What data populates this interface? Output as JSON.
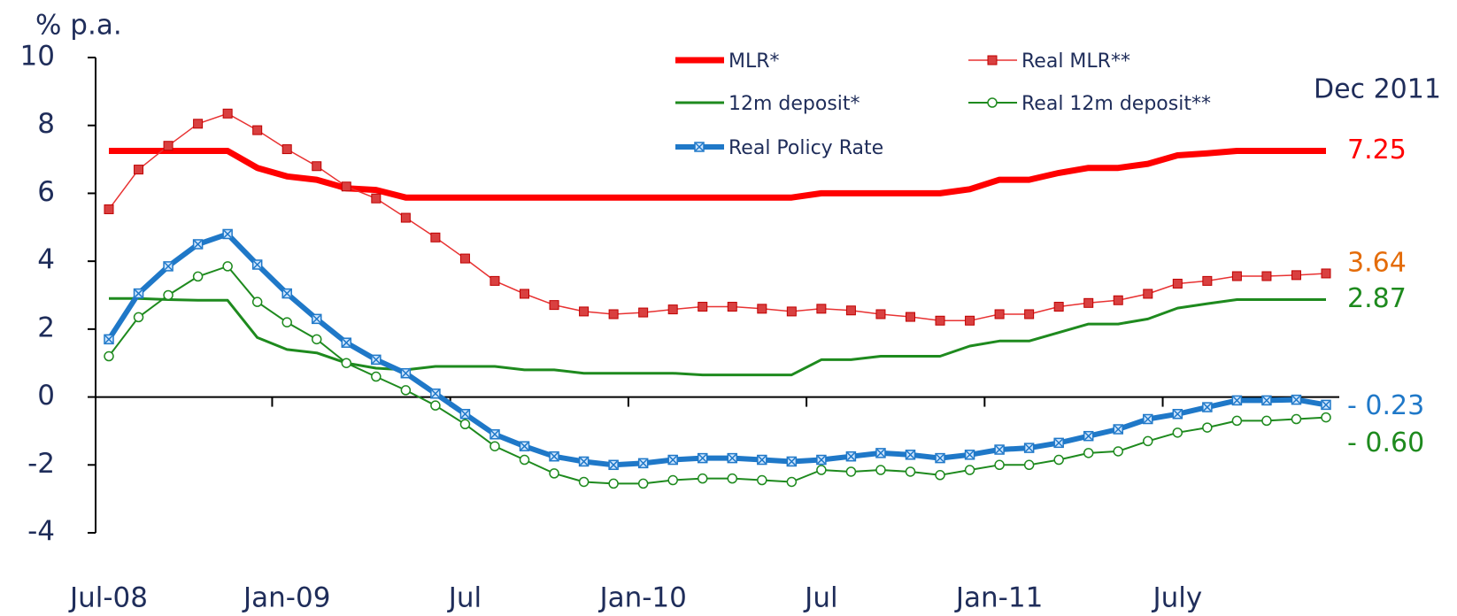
{
  "chart_data": {
    "type": "line",
    "y_label": "% p.a.",
    "annotation": "Dec 2011",
    "categories": [
      "Jul-08",
      null,
      null,
      null,
      null,
      null,
      "Jan-09",
      null,
      null,
      null,
      null,
      null,
      "Jul",
      null,
      null,
      null,
      null,
      null,
      "Jan-10",
      null,
      null,
      null,
      null,
      null,
      "Jul",
      null,
      null,
      null,
      null,
      null,
      "Jan-11",
      null,
      null,
      null,
      null,
      null,
      "July",
      null,
      null,
      null,
      null,
      null
    ],
    "ylim": [
      -4,
      10
    ],
    "yticks": [
      -4,
      -2,
      0,
      2,
      4,
      6,
      8,
      10
    ],
    "series": [
      {
        "name": "MLR*",
        "color": "#ff0000",
        "width": 7,
        "marker": "none",
        "values": [
          7.25,
          7.25,
          7.25,
          7.25,
          7.25,
          6.75,
          6.5,
          6.4,
          6.15,
          6.1,
          5.875,
          5.875,
          5.875,
          5.875,
          5.875,
          5.875,
          5.875,
          5.875,
          5.875,
          5.875,
          5.875,
          5.875,
          5.875,
          5.875,
          6.0,
          6.0,
          6.0,
          6.0,
          6.0,
          6.12,
          6.4,
          6.4,
          6.6,
          6.75,
          6.75,
          6.87,
          7.12,
          7.18,
          7.25,
          7.25,
          7.25,
          7.25
        ]
      },
      {
        "name": "Real MLR**",
        "color": "#e83232",
        "width": 1.5,
        "marker": "square",
        "label_color": "#e46c0a",
        "values": [
          5.53,
          6.7,
          7.4,
          8.05,
          8.35,
          7.86,
          7.3,
          6.8,
          6.2,
          5.85,
          5.28,
          4.7,
          4.08,
          3.42,
          3.04,
          2.71,
          2.52,
          2.44,
          2.49,
          2.58,
          2.66,
          2.66,
          2.6,
          2.52,
          2.6,
          2.55,
          2.44,
          2.36,
          2.25,
          2.25,
          2.44,
          2.44,
          2.66,
          2.77,
          2.85,
          3.04,
          3.34,
          3.42,
          3.56,
          3.56,
          3.59,
          3.64
        ]
      },
      {
        "name": "12m deposit*",
        "color": "#1e8a1e",
        "width": 3,
        "marker": "none",
        "values": [
          2.9,
          2.9,
          2.87,
          2.85,
          2.85,
          1.75,
          1.4,
          1.3,
          1.0,
          0.85,
          0.8,
          0.9,
          0.9,
          0.9,
          0.8,
          0.8,
          0.7,
          0.7,
          0.7,
          0.7,
          0.65,
          0.65,
          0.65,
          0.65,
          1.1,
          1.1,
          1.2,
          1.2,
          1.2,
          1.5,
          1.65,
          1.65,
          1.9,
          2.15,
          2.15,
          2.3,
          2.62,
          2.75,
          2.87,
          2.87,
          2.87,
          2.87
        ]
      },
      {
        "name": "Real 12m deposit**",
        "color": "#1e8a1e",
        "width": 2,
        "marker": "circle",
        "values": [
          1.2,
          2.35,
          3.0,
          3.55,
          3.85,
          2.8,
          2.2,
          1.7,
          1.0,
          0.6,
          0.2,
          -0.25,
          -0.8,
          -1.45,
          -1.85,
          -2.25,
          -2.5,
          -2.55,
          -2.55,
          -2.45,
          -2.4,
          -2.4,
          -2.45,
          -2.5,
          -2.15,
          -2.2,
          -2.15,
          -2.2,
          -2.3,
          -2.15,
          -2.0,
          -2.0,
          -1.85,
          -1.65,
          -1.6,
          -1.3,
          -1.05,
          -0.9,
          -0.7,
          -0.7,
          -0.65,
          -0.6
        ],
        "value_labels": [
          null,
          null,
          null,
          null,
          null,
          null,
          null,
          null,
          null,
          null,
          null,
          null,
          null,
          null,
          null,
          null,
          null,
          null,
          null,
          null,
          null,
          null,
          null,
          null,
          null,
          null,
          null,
          null,
          null,
          null,
          null,
          null,
          null,
          null,
          null,
          null,
          null,
          null,
          null,
          null,
          null,
          "- 0.60"
        ]
      },
      {
        "name": "Real Policy Rate",
        "color": "#1f78c8",
        "width": 6,
        "marker": "xsquare",
        "values": [
          1.7,
          3.05,
          3.85,
          4.5,
          4.8,
          3.9,
          3.05,
          2.3,
          1.6,
          1.1,
          0.7,
          0.1,
          -0.5,
          -1.1,
          -1.45,
          -1.75,
          -1.9,
          -2.0,
          -1.95,
          -1.85,
          -1.8,
          -1.8,
          -1.85,
          -1.9,
          -1.85,
          -1.75,
          -1.65,
          -1.7,
          -1.8,
          -1.7,
          -1.55,
          -1.5,
          -1.35,
          -1.15,
          -0.95,
          -0.65,
          -0.5,
          -0.3,
          -0.1,
          -0.1,
          -0.08,
          -0.23
        ],
        "value_labels": [
          null,
          null,
          null,
          null,
          null,
          null,
          null,
          null,
          null,
          null,
          null,
          null,
          null,
          null,
          null,
          null,
          null,
          null,
          null,
          null,
          null,
          null,
          null,
          null,
          null,
          null,
          null,
          null,
          null,
          null,
          null,
          null,
          null,
          null,
          null,
          null,
          null,
          null,
          null,
          null,
          null,
          "- 0.23"
        ]
      }
    ]
  }
}
